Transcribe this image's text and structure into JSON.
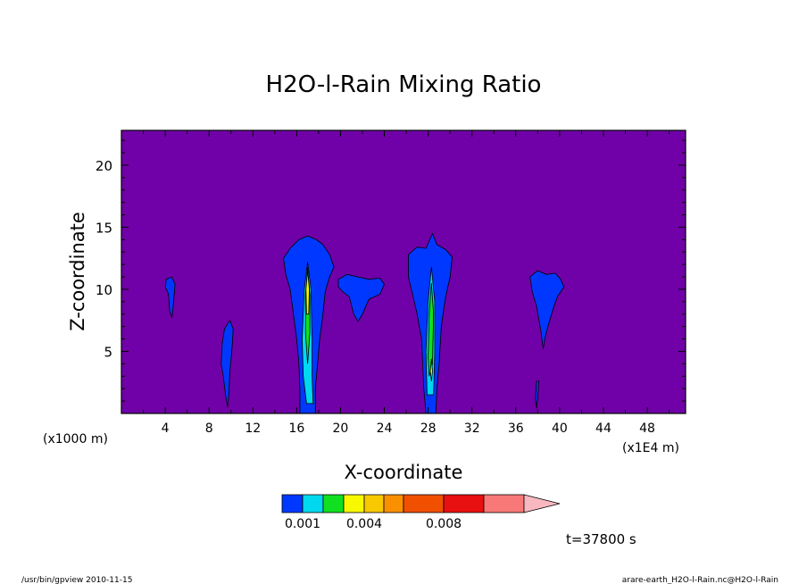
{
  "chart_data": {
    "type": "contour",
    "title": "H2O-l-Rain Mixing Ratio",
    "xlabel": "X-coordinate",
    "ylabel": "Z-coordinate",
    "x_unit_left": "(x1000 m)",
    "x_unit_right": "(x1E4 m)",
    "x_ticks": [
      "4",
      "8",
      "12",
      "16",
      "20",
      "24",
      "28",
      "32",
      "36",
      "40",
      "44",
      "48"
    ],
    "y_ticks": [
      "5",
      "10",
      "15",
      "20"
    ],
    "xlim": [
      0,
      51.5
    ],
    "ylim": [
      0,
      22.8
    ],
    "background_color": "#7000a8",
    "colorbar": {
      "colors": [
        "#0038ff",
        "#00d8f0",
        "#10e020",
        "#f8f800",
        "#f8c800",
        "#f89000",
        "#f05000",
        "#e81010",
        "#f87878",
        "#f8b8c0"
      ],
      "tick_labels": [
        "0.001",
        "0.004",
        "0.008"
      ],
      "tick_index": [
        1,
        4,
        7
      ]
    },
    "time_label": "t=37800  s",
    "footer_left": "/usr/bin/gpview   2010-11-15",
    "footer_right": "arare-earth_H2O-l-Rain.nc@H2O-l-Rain",
    "cells": [
      {
        "name": "cell-x4.5",
        "color": "#0038ff",
        "pts": [
          [
            4.1,
            10.8
          ],
          [
            4.6,
            11.0
          ],
          [
            4.9,
            10.4
          ],
          [
            4.8,
            9.4
          ],
          [
            4.7,
            8.4
          ],
          [
            4.6,
            7.7
          ],
          [
            4.4,
            8.3
          ],
          [
            4.3,
            9.6
          ],
          [
            4.0,
            10.2
          ]
        ]
      },
      {
        "name": "cell-x9.8",
        "color": "#0038ff",
        "pts": [
          [
            9.4,
            6.8
          ],
          [
            9.9,
            7.5
          ],
          [
            10.2,
            6.8
          ],
          [
            10.1,
            5.2
          ],
          [
            9.9,
            3.4
          ],
          [
            9.8,
            1.5
          ],
          [
            9.7,
            0.5
          ],
          [
            9.5,
            1.5
          ],
          [
            9.3,
            3.0
          ],
          [
            9.1,
            4.0
          ],
          [
            9.2,
            5.6
          ]
        ]
      },
      {
        "name": "cell-x17",
        "color": "#0038ff",
        "pts": [
          [
            14.8,
            12.5
          ],
          [
            15.4,
            13.3
          ],
          [
            16.2,
            14.0
          ],
          [
            17.0,
            14.3
          ],
          [
            17.8,
            14.0
          ],
          [
            18.4,
            13.6
          ],
          [
            19.0,
            12.8
          ],
          [
            19.4,
            11.8
          ],
          [
            19.0,
            11.0
          ],
          [
            18.6,
            9.8
          ],
          [
            18.4,
            8.0
          ],
          [
            18.1,
            6.0
          ],
          [
            17.9,
            4.0
          ],
          [
            17.7,
            2.0
          ],
          [
            17.7,
            0
          ],
          [
            16.3,
            0
          ],
          [
            16.3,
            2.0
          ],
          [
            16.2,
            4.0
          ],
          [
            16.0,
            6.0
          ],
          [
            15.7,
            8.0
          ],
          [
            15.4,
            10.0
          ],
          [
            15.0,
            11.2
          ]
        ]
      },
      {
        "name": "cell-x21.5",
        "color": "#0038ff",
        "pts": [
          [
            19.8,
            10.8
          ],
          [
            20.6,
            11.2
          ],
          [
            21.6,
            11.0
          ],
          [
            22.6,
            10.8
          ],
          [
            23.6,
            10.9
          ],
          [
            24.0,
            10.4
          ],
          [
            23.6,
            9.6
          ],
          [
            22.6,
            9.2
          ],
          [
            22.0,
            8.0
          ],
          [
            21.6,
            7.4
          ],
          [
            21.2,
            8.0
          ],
          [
            20.8,
            9.4
          ],
          [
            20.2,
            9.8
          ],
          [
            19.8,
            10.2
          ]
        ]
      },
      {
        "name": "cell-x28",
        "color": "#0038ff",
        "pts": [
          [
            26.2,
            12.8
          ],
          [
            27.0,
            13.4
          ],
          [
            27.8,
            13.3
          ],
          [
            28.4,
            14.5
          ],
          [
            28.8,
            13.6
          ],
          [
            29.6,
            13.2
          ],
          [
            30.2,
            12.6
          ],
          [
            30.0,
            11.0
          ],
          [
            29.6,
            9.4
          ],
          [
            29.2,
            7.0
          ],
          [
            29.0,
            4.0
          ],
          [
            28.8,
            2.0
          ],
          [
            28.7,
            0
          ],
          [
            27.8,
            0
          ],
          [
            27.6,
            2.0
          ],
          [
            27.5,
            4.0
          ],
          [
            27.4,
            6.0
          ],
          [
            27.0,
            8.0
          ],
          [
            26.6,
            9.5
          ],
          [
            26.2,
            11.0
          ]
        ]
      },
      {
        "name": "cell-x39",
        "color": "#0038ff",
        "pts": [
          [
            37.3,
            11.0
          ],
          [
            38.0,
            11.5
          ],
          [
            38.8,
            11.2
          ],
          [
            39.6,
            11.3
          ],
          [
            40.1,
            10.8
          ],
          [
            40.4,
            10.2
          ],
          [
            39.8,
            9.4
          ],
          [
            39.4,
            8.4
          ],
          [
            39.0,
            7.2
          ],
          [
            38.7,
            6.2
          ],
          [
            38.5,
            5.2
          ],
          [
            38.3,
            6.6
          ],
          [
            37.9,
            8.6
          ],
          [
            37.5,
            9.8
          ]
        ]
      },
      {
        "name": "cell-x38-base",
        "color": "#0038ff",
        "pts": [
          [
            37.9,
            2.6
          ],
          [
            38.1,
            2.6
          ],
          [
            38.0,
            1.2
          ],
          [
            37.9,
            0.4
          ],
          [
            37.8,
            1.2
          ]
        ]
      },
      {
        "name": "core-x17-cyan",
        "color": "#00d8f0",
        "pts": [
          [
            16.7,
            10.0
          ],
          [
            17.0,
            12.2
          ],
          [
            17.3,
            10.0
          ],
          [
            17.4,
            6.0
          ],
          [
            17.4,
            3.0
          ],
          [
            17.5,
            0.8
          ],
          [
            16.9,
            0.8
          ],
          [
            16.6,
            3.0
          ],
          [
            16.5,
            6.0
          ]
        ]
      },
      {
        "name": "core-x17-green",
        "color": "#10e020",
        "pts": [
          [
            16.8,
            9.5
          ],
          [
            17.0,
            11.8
          ],
          [
            17.2,
            9.5
          ],
          [
            17.2,
            6.5
          ],
          [
            17.0,
            4.0
          ],
          [
            16.8,
            6.5
          ]
        ]
      },
      {
        "name": "core-x17-yellow",
        "color": "#f8f800",
        "pts": [
          [
            16.85,
            10.0
          ],
          [
            17.0,
            11.5
          ],
          [
            17.15,
            10.0
          ],
          [
            17.1,
            8.0
          ],
          [
            16.9,
            8.0
          ]
        ]
      },
      {
        "name": "core-x28-cyan",
        "color": "#00d8f0",
        "pts": [
          [
            28.0,
            9.0
          ],
          [
            28.3,
            11.8
          ],
          [
            28.6,
            9.0
          ],
          [
            28.6,
            5.0
          ],
          [
            28.5,
            1.5
          ],
          [
            27.9,
            1.5
          ],
          [
            27.8,
            5.0
          ]
        ]
      },
      {
        "name": "core-x28-green",
        "color": "#10e020",
        "pts": [
          [
            28.1,
            8.0
          ],
          [
            28.3,
            10.5
          ],
          [
            28.5,
            8.0
          ],
          [
            28.4,
            4.0
          ],
          [
            28.1,
            3.0
          ],
          [
            28.0,
            4.5
          ]
        ]
      },
      {
        "name": "core-x28-yellow",
        "color": "#f8f800",
        "pts": [
          [
            28.2,
            3.4
          ],
          [
            28.3,
            4.4
          ],
          [
            28.4,
            3.4
          ],
          [
            28.3,
            2.6
          ]
        ]
      }
    ]
  }
}
